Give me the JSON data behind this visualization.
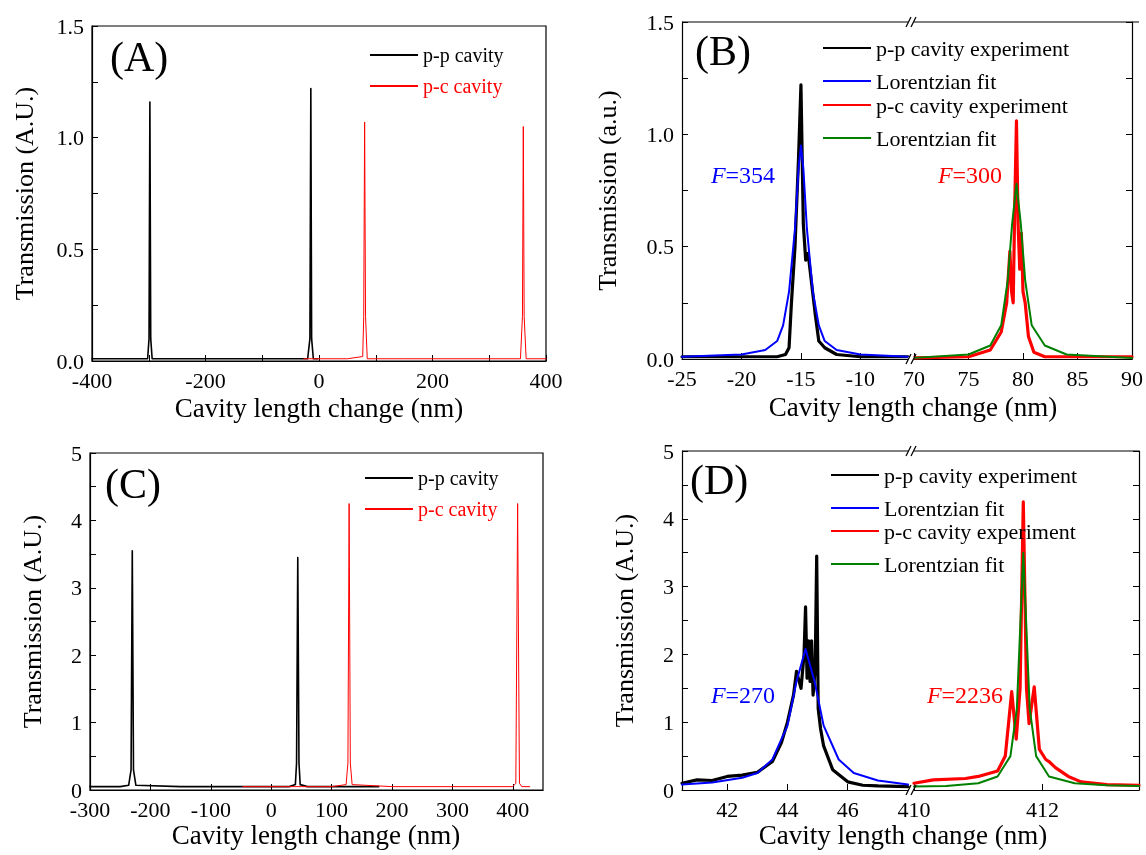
{
  "chart_data": [
    {
      "type": "line",
      "title": "(A)",
      "xlabel": "Cavity length change (nm)",
      "ylabel": "Transmission (A.U.)",
      "xlim": [
        -400,
        400
      ],
      "ylim": [
        0,
        1.5
      ],
      "xticks": [
        -400,
        {
          "value": -300,
          "label": null
        },
        -200,
        {
          "value": -100,
          "label": null
        },
        0,
        {
          "value": 100,
          "label": null
        },
        200,
        {
          "value": 300,
          "label": null
        },
        400
      ],
      "yticks": [
        {
          "value": 0,
          "label": "0.0"
        },
        {
          "value": 0.25,
          "label": null
        },
        0.5,
        {
          "value": 0.75,
          "label": null
        },
        {
          "value": 1,
          "label": "1.0"
        },
        {
          "value": 1.25,
          "label": null
        },
        1.5
      ],
      "grid": false,
      "legend": "top right",
      "marker": "none",
      "line_style": "solid",
      "series": [
        {
          "name": "p-p cavity",
          "color": "#000000",
          "x": [
            -400,
            -350,
            -302,
            -299.5,
            -298,
            -296.5,
            -294,
            -250,
            -200,
            -150,
            -100,
            -50,
            -20,
            -16,
            -14.4,
            -13,
            -10,
            -2
          ],
          "values": [
            0.01,
            0.01,
            0.01,
            0.1,
            1.16,
            0.1,
            0.01,
            0.01,
            0.01,
            0.01,
            0.01,
            0.01,
            0.01,
            0.1,
            1.22,
            0.1,
            0.01,
            0.01
          ]
        },
        {
          "name": "p-c cavity",
          "color": "#ff0000",
          "x": [
            -27,
            0,
            50,
            77,
            78.8,
            80.4,
            82,
            85,
            150,
            250,
            355,
            358.5,
            360,
            361.5,
            365,
            400
          ],
          "values": [
            0.01,
            0.01,
            0.01,
            0.02,
            0.2,
            1.07,
            0.2,
            0.01,
            0.01,
            0.01,
            0.01,
            0.2,
            1.05,
            0.2,
            0.01,
            0.01
          ]
        }
      ]
    },
    {
      "type": "line",
      "title": "(B)",
      "xlabel": "Cavity length change (nm)",
      "ylabel": "Transmission (a.u.)",
      "xlim": [
        -25,
        -6
      ],
      "ylim": [
        0,
        1.5
      ],
      "xticks": [
        -25,
        -20,
        -15,
        -10
      ],
      "yticks": [
        {
          "value": 0,
          "label": "0.0"
        },
        {
          "value": 0.25,
          "label": null
        },
        0.5,
        {
          "value": 0.75,
          "label": null
        },
        {
          "value": 1,
          "label": "1.0"
        },
        {
          "value": 1.25,
          "label": null
        },
        1.5
      ],
      "grid": false,
      "legend": "top right",
      "marker": "none",
      "line_style": "solid",
      "annotations": [
        "F=354"
      ],
      "series": [
        {
          "name": "p-p cavity experiment",
          "color": "#000000",
          "x": [
            -25,
            -20,
            -17,
            -16.3,
            -16,
            -15.8,
            -15.5,
            -15.2,
            -15,
            -14.8,
            -14.6,
            -14.4,
            -14.2,
            -13.8,
            -13.5,
            -13,
            -12,
            -10,
            -6
          ],
          "values": [
            0.01,
            0.01,
            0.01,
            0.02,
            0.05,
            0.25,
            0.5,
            0.9,
            1.22,
            0.6,
            0.44,
            0.47,
            0.38,
            0.2,
            0.08,
            0.05,
            0.02,
            0.01,
            0.01
          ]
        },
        {
          "name": "Lorentzian fit",
          "color": "#0000ff",
          "x": [
            -25,
            -20,
            -18,
            -17,
            -16.5,
            -16,
            -15.5,
            -15.2,
            -15,
            -14.8,
            -14.5,
            -14,
            -13.5,
            -13,
            -12,
            -10,
            -6
          ],
          "values": [
            0.01,
            0.02,
            0.04,
            0.08,
            0.15,
            0.3,
            0.58,
            0.85,
            0.95,
            0.85,
            0.58,
            0.3,
            0.15,
            0.08,
            0.04,
            0.02,
            0.01
          ]
        }
      ]
    },
    {
      "type": "line",
      "xlim": [
        70,
        90
      ],
      "ylim": [
        0,
        1.5
      ],
      "xticks": [
        70,
        75,
        80,
        85,
        90
      ],
      "yticks": [
        0,
        0.25,
        0.5,
        0.75,
        1,
        1.25,
        1.5
      ],
      "tick_labels": "x",
      "grid": false,
      "legend": "top left",
      "marker": "none",
      "line_style": "solid",
      "annotations": [
        "F=300"
      ],
      "series": [
        {
          "name": "p-c cavity experiment",
          "color": "#ff0000",
          "x": [
            70,
            75,
            77,
            78,
            78.5,
            78.8,
            78.95,
            79.1,
            79.25,
            79.4,
            79.55,
            79.7,
            79.85,
            80,
            80.2,
            80.5,
            81,
            82,
            85,
            90
          ],
          "values": [
            0.005,
            0.01,
            0.04,
            0.12,
            0.25,
            0.48,
            0.3,
            0.25,
            0.7,
            1.06,
            0.6,
            0.4,
            0.56,
            0.3,
            0.25,
            0.1,
            0.03,
            0.01,
            0.01,
            0.01
          ]
        },
        {
          "name": "Lorentzian fit",
          "color": "#008000",
          "x": [
            70,
            75,
            77,
            78,
            78.6,
            79,
            79.4,
            79.8,
            80.2,
            80.8,
            82,
            84,
            90
          ],
          "values": [
            0.005,
            0.02,
            0.06,
            0.15,
            0.35,
            0.6,
            0.78,
            0.6,
            0.35,
            0.15,
            0.06,
            0.02,
            0.005
          ]
        }
      ]
    },
    {
      "type": "line",
      "title": "(C)",
      "xlabel": "Cavity length change (nm)",
      "ylabel": "Transmission (A.U.)",
      "xlim": [
        -300,
        450
      ],
      "ylim": [
        0,
        5
      ],
      "xticks": [
        -300,
        -200,
        -100,
        0,
        100,
        200,
        300,
        400
      ],
      "yticks": [
        0,
        {
          "value": 0.5,
          "label": null
        },
        1,
        {
          "value": 1.5,
          "label": null
        },
        2,
        {
          "value": 2.5,
          "label": null
        },
        3,
        {
          "value": 3.5,
          "label": null
        },
        4,
        {
          "value": 4.5,
          "label": null
        },
        5
      ],
      "grid": false,
      "legend": "top right",
      "marker": "none",
      "line_style": "solid",
      "series": [
        {
          "name": "p-p cavity",
          "color": "#000000",
          "x": [
            -300,
            -250,
            -236,
            -232,
            -230,
            -228,
            -224,
            -150,
            -50,
            30,
            40,
            42,
            44,
            46,
            48,
            60,
            100,
            178
          ],
          "values": [
            0.05,
            0.05,
            0.07,
            0.3,
            3.55,
            0.3,
            0.07,
            0.05,
            0.05,
            0.05,
            0.08,
            0.4,
            3.45,
            0.4,
            0.08,
            0.05,
            0.05,
            0.05
          ]
        },
        {
          "name": "p-c cavity",
          "color": "#ff0000",
          "x": [
            -47,
            0,
            50,
            100,
            124,
            127,
            129,
            131,
            134,
            200,
            300,
            400,
            405,
            408,
            411,
            415,
            428
          ],
          "values": [
            0.05,
            0.05,
            0.05,
            0.05,
            0.08,
            0.4,
            4.25,
            0.4,
            0.08,
            0.05,
            0.05,
            0.05,
            0.1,
            4.25,
            0.1,
            0.05,
            0.05
          ]
        }
      ]
    },
    {
      "type": "line",
      "title": "(D)",
      "xlabel": "Cavity length change (nm)",
      "ylabel": "Transmission (A.U.)",
      "xlim": [
        40.5,
        48
      ],
      "ylim": [
        0,
        5
      ],
      "xticks": [
        42,
        44,
        46
      ],
      "yticks": [
        0,
        {
          "value": 0.5,
          "label": null
        },
        1,
        {
          "value": 1.5,
          "label": null
        },
        2,
        {
          "value": 2.5,
          "label": null
        },
        3,
        {
          "value": 3.5,
          "label": null
        },
        4,
        {
          "value": 4.5,
          "label": null
        },
        5
      ],
      "grid": false,
      "legend": "top right",
      "marker": "none",
      "line_style": "solid",
      "annotations": [
        "F=270"
      ],
      "series": [
        {
          "name": "p-p cavity experiment",
          "color": "#000000",
          "x": [
            40.5,
            41,
            41.5,
            42,
            42.5,
            43,
            43.5,
            43.8,
            44,
            44.2,
            44.3,
            44.45,
            44.55,
            44.6,
            44.65,
            44.7,
            44.75,
            44.8,
            44.85,
            44.92,
            44.97,
            45.02,
            45.1,
            45.2,
            45.5,
            46,
            46.5,
            47,
            48
          ],
          "values": [
            0.1,
            0.15,
            0.14,
            0.2,
            0.22,
            0.26,
            0.42,
            0.7,
            1.0,
            1.4,
            1.75,
            1.5,
            2.0,
            2.7,
            1.65,
            2.2,
            1.6,
            2.2,
            1.4,
            1.8,
            3.45,
            1.2,
            0.9,
            0.65,
            0.3,
            0.12,
            0.07,
            0.06,
            0.05
          ]
        },
        {
          "name": "Lorentzian fit",
          "color": "#0000ff",
          "x": [
            40.5,
            41.5,
            42.5,
            43,
            43.5,
            44,
            44.3,
            44.6,
            44.9,
            45.2,
            45.7,
            46.2,
            47,
            48
          ],
          "values": [
            0.08,
            0.11,
            0.18,
            0.25,
            0.45,
            0.95,
            1.6,
            2.08,
            1.6,
            0.95,
            0.45,
            0.25,
            0.14,
            0.08
          ]
        }
      ]
    },
    {
      "type": "line",
      "xlim": [
        410,
        413.5
      ],
      "ylim": [
        0,
        5
      ],
      "xticks": [
        410,
        412
      ],
      "yticks": [
        0,
        0.5,
        1,
        1.5,
        2,
        2.5,
        3,
        3.5,
        4,
        4.5,
        5
      ],
      "tick_labels": "x",
      "grid": false,
      "legend": "top left",
      "marker": "none",
      "line_style": "solid",
      "annotations": [
        "F=2236"
      ],
      "series": [
        {
          "name": "p-c cavity experiment",
          "color": "#ff0000",
          "x": [
            410,
            410.3,
            410.8,
            411,
            411.3,
            411.42,
            411.52,
            411.59,
            411.65,
            411.7,
            411.75,
            411.79,
            411.87,
            411.95,
            412.05,
            412.1,
            412.2,
            412.4,
            412.6,
            413,
            413.5
          ],
          "values": [
            0.1,
            0.15,
            0.17,
            0.2,
            0.28,
            0.5,
            1.45,
            0.75,
            1.5,
            4.25,
            1.5,
            0.98,
            1.52,
            0.6,
            0.45,
            0.42,
            0.33,
            0.2,
            0.12,
            0.08,
            0.07
          ]
        },
        {
          "name": "Lorentzian fit",
          "color": "#008000",
          "x": [
            410,
            410.5,
            411,
            411.3,
            411.5,
            411.6,
            411.7,
            411.8,
            411.9,
            412.1,
            412.5,
            413,
            413.5
          ],
          "values": [
            0.05,
            0.06,
            0.1,
            0.2,
            0.5,
            1.2,
            3.5,
            1.2,
            0.5,
            0.2,
            0.1,
            0.07,
            0.06
          ]
        }
      ]
    }
  ]
}
